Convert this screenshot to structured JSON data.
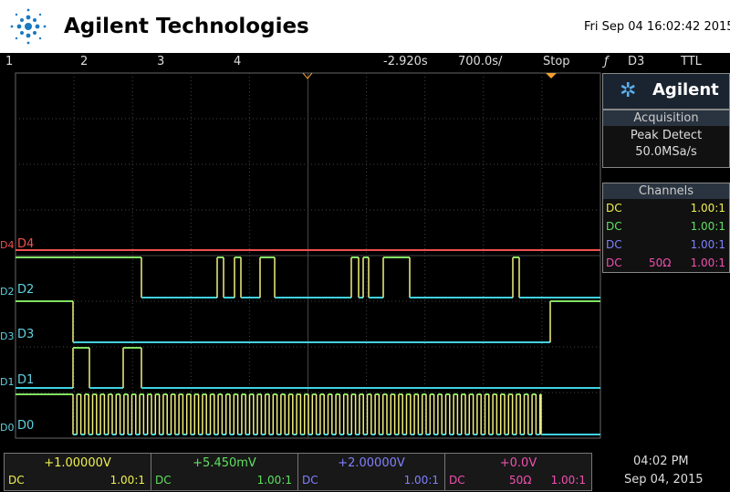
{
  "header": {
    "title": "Agilent Technologies",
    "datetime": "Fri Sep 04 16:02:42 2015"
  },
  "status_bar": {
    "channels": [
      "1",
      "2",
      "3",
      "4"
    ],
    "delay": "-2.920s",
    "timebase": "700.0s/",
    "run_state": "Stop",
    "trigger_source": "D3",
    "trigger_level": "TTL"
  },
  "side_panel": {
    "brand": "Agilent",
    "acquisition": {
      "title": "Acquisition",
      "mode": "Peak Detect",
      "rate": "50.0MSa/s"
    },
    "channels": {
      "title": "Channels",
      "rows": [
        {
          "coupling": "DC",
          "probe": "1.00:1"
        },
        {
          "coupling": "DC",
          "probe": "1.00:1"
        },
        {
          "coupling": "DC",
          "probe": "1.00:1"
        },
        {
          "coupling": "DC",
          "impedance": "50Ω",
          "probe": "1.00:1"
        }
      ]
    }
  },
  "digital_channels": [
    {
      "marker": "D4",
      "label": "D4"
    },
    {
      "marker": "D2",
      "label": "D2"
    },
    {
      "marker": "D3",
      "label": "D3"
    },
    {
      "marker": "D1",
      "label": "D1"
    },
    {
      "marker": "D0",
      "label": "D0"
    }
  ],
  "bottom_bar": {
    "channels": [
      {
        "offset": "+1.00000V",
        "coupling": "DC",
        "probe": "1.00:1"
      },
      {
        "offset": "+5.450mV",
        "coupling": "DC",
        "probe": "1.00:1"
      },
      {
        "offset": "+2.00000V",
        "coupling": "DC",
        "probe": "1.00:1"
      },
      {
        "offset": "+0.0V",
        "coupling": "DC",
        "impedance": "50Ω",
        "probe": "1.00:1"
      }
    ],
    "time": "04:02 PM",
    "date": "Sep 04, 2015"
  }
}
